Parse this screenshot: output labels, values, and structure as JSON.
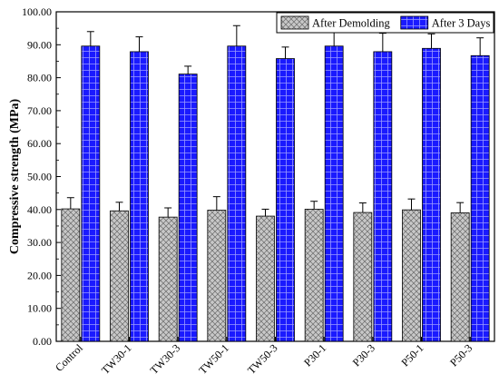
{
  "chart_data": {
    "type": "bar",
    "title": "",
    "xlabel": "",
    "ylabel": "Compressive strength (MPa)",
    "ylim": [
      0,
      100
    ],
    "ytick_step": 10,
    "ytick_format": "0.00",
    "grid": false,
    "legend_position": "top-right",
    "categories": [
      "Control",
      "TW30-1",
      "TW30-3",
      "TW50-1",
      "TW50-3",
      "P30-1",
      "P30-3",
      "P50-1",
      "P50-3"
    ],
    "series": [
      {
        "name": "After Demolding",
        "values": [
          40.2,
          39.6,
          37.7,
          39.8,
          38.0,
          40.1,
          39.1,
          39.9,
          39.0
        ],
        "errors": [
          3.4,
          2.6,
          2.8,
          4.1,
          2.1,
          2.4,
          2.9,
          3.3,
          3.1
        ],
        "color": "#c8c8c8",
        "pattern": "crosshatch"
      },
      {
        "name": "After 3 Days",
        "values": [
          89.6,
          87.9,
          81.1,
          89.6,
          85.8,
          89.6,
          87.9,
          88.9,
          86.7
        ],
        "errors": [
          4.4,
          4.5,
          2.4,
          6.2,
          3.5,
          4.4,
          5.6,
          4.4,
          5.4
        ],
        "color": "#1a1aff",
        "pattern": "grid"
      }
    ]
  }
}
